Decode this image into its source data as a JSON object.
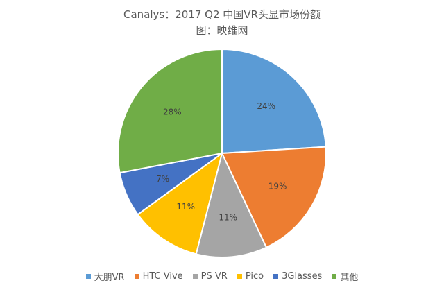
{
  "chart_data": {
    "type": "pie",
    "title": "Canalys：2017 Q2 中国VR头显市场份额",
    "subtitle": "图：映维网",
    "categories": [
      "大朋VR",
      "HTC Vive",
      "PS VR",
      "Pico",
      "3Glasses",
      "其他"
    ],
    "values": [
      24,
      19,
      11,
      11,
      7,
      28
    ],
    "labels": [
      "24%",
      "19%",
      "11%",
      "11%",
      "7%",
      "28%"
    ],
    "colors": [
      "#5B9BD5",
      "#ED7D31",
      "#A5A5A5",
      "#FFC000",
      "#4472C4",
      "#70AD47"
    ],
    "start": "12 o'clock",
    "direction": "clockwise",
    "legend_position": "bottom"
  }
}
